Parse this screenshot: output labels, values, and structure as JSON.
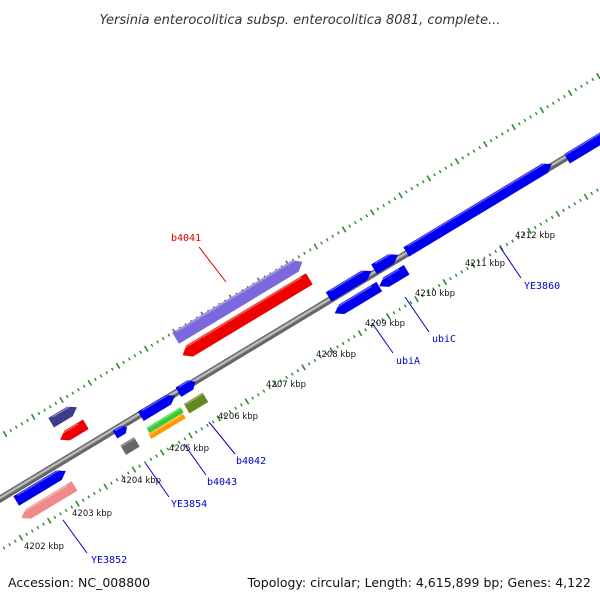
{
  "title": "Yersinia enterocolitica subsp. enterocolitica 8081, complete...",
  "accession": "Accession: NC_008800",
  "summary": "Topology: circular; Length: 4,615,899 bp; Genes: 4,122",
  "colors": {
    "backbone": "#8a8a8a",
    "ticks": "#2e8b2e",
    "label_blue": "#0000cc",
    "label_red": "#dd0000"
  },
  "kbp_labels": [
    "4202 kbp",
    "4203 kbp",
    "4204 kbp",
    "4205 kbp",
    "4206 kbp",
    "4207 kbp",
    "4208 kbp",
    "4209 kbp",
    "4210 kbp",
    "4211 kbp",
    "4212 kbp"
  ],
  "features": [
    {
      "id": "f1",
      "strand": "+",
      "color": "#0000ee"
    },
    {
      "id": "f2",
      "strand": "-",
      "color": "#f08a8a"
    },
    {
      "id": "f3",
      "strand": "+",
      "color": "#3c3c8c"
    },
    {
      "id": "f4",
      "strand": "-",
      "color": "#ee0000"
    },
    {
      "id": "f5",
      "strand": "+",
      "color": "#0000ee"
    },
    {
      "id": "f6",
      "strand": "-",
      "color": "#666666"
    },
    {
      "id": "f7",
      "strand": "+",
      "color": "#0000ee"
    },
    {
      "id": "f8",
      "strand": "-",
      "color": "#33cc33"
    },
    {
      "id": "f9",
      "strand": "-",
      "color": "#ff9900"
    },
    {
      "id": "f10",
      "strand": "+",
      "color": "#0000ee"
    },
    {
      "id": "f11",
      "strand": "-",
      "color": "#668822"
    },
    {
      "id": "f12",
      "strand": "+",
      "color": "#7b68dd"
    },
    {
      "id": "f13",
      "strand": "-",
      "color": "#ee0000"
    },
    {
      "id": "f14",
      "strand": "+",
      "color": "#0000ee"
    },
    {
      "id": "f15",
      "strand": "-",
      "color": "#0000ee"
    },
    {
      "id": "f16",
      "strand": "+",
      "color": "#0000ee"
    },
    {
      "id": "f17",
      "strand": "-",
      "color": "#0000ee"
    },
    {
      "id": "f18",
      "strand": "+",
      "color": "#0000ee"
    },
    {
      "id": "f19",
      "strand": "+",
      "color": "#0000ee"
    }
  ],
  "gene_labels": [
    {
      "text": "YE3852",
      "color": "#0000cc"
    },
    {
      "text": "YE3854",
      "color": "#0000cc"
    },
    {
      "text": "b4043",
      "color": "#0000cc"
    },
    {
      "text": "b4042",
      "color": "#0000cc"
    },
    {
      "text": "b4041",
      "color": "#dd0000"
    },
    {
      "text": "ubiA",
      "color": "#0000cc"
    },
    {
      "text": "ubiC",
      "color": "#0000cc"
    },
    {
      "text": "YE3860",
      "color": "#0000cc"
    }
  ]
}
